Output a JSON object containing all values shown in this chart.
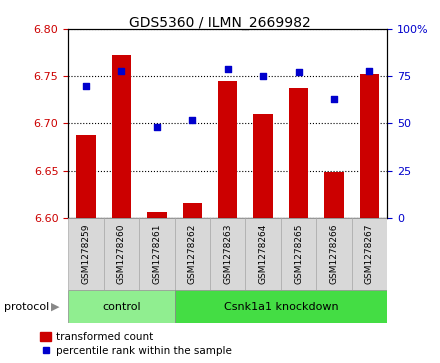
{
  "title": "GDS5360 / ILMN_2669982",
  "samples": [
    "GSM1278259",
    "GSM1278260",
    "GSM1278261",
    "GSM1278262",
    "GSM1278263",
    "GSM1278264",
    "GSM1278265",
    "GSM1278266",
    "GSM1278267"
  ],
  "transformed_count": [
    6.688,
    6.772,
    6.606,
    6.616,
    6.745,
    6.71,
    6.738,
    6.648,
    6.752
  ],
  "percentile_rank": [
    70,
    78,
    48,
    52,
    79,
    75,
    77,
    63,
    78
  ],
  "ylim_left": [
    6.6,
    6.8
  ],
  "ylim_right": [
    0,
    100
  ],
  "yticks_left": [
    6.6,
    6.65,
    6.7,
    6.75,
    6.8
  ],
  "yticks_right": [
    0,
    25,
    50,
    75,
    100
  ],
  "bar_color": "#cc0000",
  "dot_color": "#0000cc",
  "n_control": 3,
  "control_label": "control",
  "knockdown_label": "Csnk1a1 knockdown",
  "protocol_label": "protocol",
  "legend_bar": "transformed count",
  "legend_dot": "percentile rank within the sample",
  "control_color": "#90ee90",
  "knockdown_color": "#44dd44",
  "tick_label_color_left": "#cc0000",
  "tick_label_color_right": "#0000cc",
  "sample_box_color": "#d8d8d8"
}
